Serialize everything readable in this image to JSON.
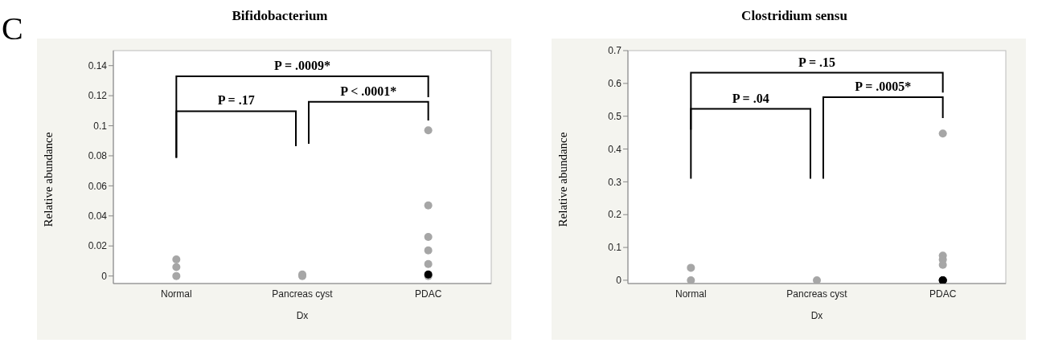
{
  "chart_data": [
    {
      "type": "scatter",
      "title": "Bifidobacterium",
      "xlabel": "Dx",
      "ylabel": "Relative abundance",
      "categories": [
        "Normal",
        "Pancreas cyst",
        "PDAC"
      ],
      "ylim": [
        -0.005,
        0.15
      ],
      "yticks": [
        0,
        0.02,
        0.04,
        0.06,
        0.08,
        0.1,
        0.12,
        0.14
      ],
      "grid": false,
      "legend": false,
      "marker": "circle",
      "annotations": [
        "C",
        "P = .0009*",
        "P = .17",
        "P < .0001*"
      ],
      "series": [
        {
          "color": "#a6a6a6",
          "x": [
            "Normal",
            "Normal",
            "Normal",
            "Pancreas cyst",
            "Pancreas cyst",
            "PDAC",
            "PDAC",
            "PDAC",
            "PDAC",
            "PDAC",
            "PDAC"
          ],
          "values": [
            0.011,
            0.006,
            0,
            0,
            0.001,
            0.097,
            0.047,
            0.026,
            0.017,
            0.008,
            0
          ]
        },
        {
          "color": "#000000",
          "x": [
            "PDAC"
          ],
          "values": [
            0.001
          ]
        }
      ]
    },
    {
      "type": "scatter",
      "title": "Clostridium sensu",
      "xlabel": "Dx",
      "ylabel": "Relative abundance",
      "categories": [
        "Normal",
        "Pancreas cyst",
        "PDAC"
      ],
      "ylim": [
        -0.01,
        0.7
      ],
      "yticks": [
        0,
        0.1,
        0.2,
        0.3,
        0.4,
        0.5,
        0.6,
        0.7
      ],
      "grid": false,
      "legend": false,
      "marker": "circle",
      "annotations": [
        "P = .15",
        "P = .04",
        "P = .0005*"
      ],
      "series": [
        {
          "color": "#a6a6a6",
          "x": [
            "Normal",
            "Normal",
            "Pancreas cyst",
            "PDAC",
            "PDAC",
            "PDAC",
            "PDAC",
            "PDAC"
          ],
          "values": [
            0.038,
            0,
            0,
            0.447,
            0.075,
            0.063,
            0.047,
            0
          ]
        },
        {
          "color": "#000000",
          "x": [
            "PDAC",
            "PDAC"
          ],
          "values": [
            0,
            0
          ]
        }
      ]
    }
  ]
}
